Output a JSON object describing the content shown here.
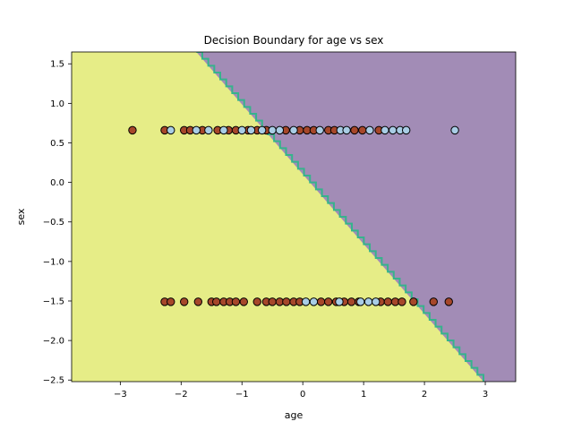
{
  "chart_data": {
    "type": "scatter",
    "title": "Decision Boundary for age vs sex",
    "xlabel": "age",
    "ylabel": "sex",
    "xlim": [
      -3.8,
      3.5
    ],
    "ylim": [
      -2.52,
      1.65
    ],
    "xticks": [
      -3,
      -2,
      -1,
      0,
      1,
      2,
      3
    ],
    "yticks": [
      -2.5,
      -2.0,
      -1.5,
      -1.0,
      -0.5,
      0.0,
      0.5,
      1.0,
      1.5
    ],
    "grid": false,
    "boundary": {
      "points": [
        [
          -1.75,
          1.65
        ],
        [
          2.97,
          -2.52
        ]
      ],
      "left_region_color": "#e6ed87",
      "right_region_color": "#a28cb6",
      "edge_color": "#36b38c"
    },
    "class_colors": {
      "class_0": "#a9cde5",
      "class_1": "#a6472a"
    },
    "series": [
      {
        "class": "class_1",
        "points": [
          [
            -2.8,
            0.66
          ],
          [
            -2.27,
            0.66
          ],
          [
            -1.95,
            0.66
          ],
          [
            -1.85,
            0.66
          ],
          [
            -1.65,
            0.66
          ],
          [
            -1.4,
            0.66
          ],
          [
            -1.22,
            0.66
          ],
          [
            -1.1,
            0.66
          ],
          [
            -0.9,
            0.66
          ],
          [
            -0.75,
            0.66
          ],
          [
            -0.6,
            0.66
          ],
          [
            -0.28,
            0.66
          ],
          [
            -0.05,
            0.66
          ],
          [
            0.07,
            0.66
          ],
          [
            0.18,
            0.66
          ],
          [
            0.42,
            0.66
          ],
          [
            0.52,
            0.66
          ],
          [
            0.85,
            0.66
          ],
          [
            0.98,
            0.66
          ],
          [
            1.25,
            0.66
          ],
          [
            -2.27,
            -1.51
          ],
          [
            -2.17,
            -1.51
          ],
          [
            -1.95,
            -1.51
          ],
          [
            -1.72,
            -1.51
          ],
          [
            -1.5,
            -1.51
          ],
          [
            -1.42,
            -1.51
          ],
          [
            -1.3,
            -1.51
          ],
          [
            -1.2,
            -1.51
          ],
          [
            -1.1,
            -1.51
          ],
          [
            -0.97,
            -1.51
          ],
          [
            -0.75,
            -1.51
          ],
          [
            -0.6,
            -1.51
          ],
          [
            -0.5,
            -1.51
          ],
          [
            -0.38,
            -1.51
          ],
          [
            -0.27,
            -1.51
          ],
          [
            -0.15,
            -1.51
          ],
          [
            -0.05,
            -1.51
          ],
          [
            0.3,
            -1.51
          ],
          [
            0.42,
            -1.51
          ],
          [
            0.55,
            -1.51
          ],
          [
            0.68,
            -1.51
          ],
          [
            0.8,
            -1.51
          ],
          [
            0.92,
            -1.51
          ],
          [
            1.28,
            -1.51
          ],
          [
            1.4,
            -1.51
          ],
          [
            1.52,
            -1.51
          ],
          [
            1.63,
            -1.51
          ],
          [
            1.82,
            -1.51
          ],
          [
            2.15,
            -1.51
          ],
          [
            2.4,
            -1.51
          ]
        ]
      },
      {
        "class": "class_0",
        "points": [
          [
            -2.17,
            0.66
          ],
          [
            -1.75,
            0.66
          ],
          [
            -1.55,
            0.66
          ],
          [
            -1.3,
            0.66
          ],
          [
            -1.0,
            0.66
          ],
          [
            -0.85,
            0.66
          ],
          [
            -0.67,
            0.66
          ],
          [
            -0.5,
            0.66
          ],
          [
            -0.38,
            0.66
          ],
          [
            -0.15,
            0.66
          ],
          [
            0.28,
            0.66
          ],
          [
            0.62,
            0.66
          ],
          [
            0.72,
            0.66
          ],
          [
            1.1,
            0.66
          ],
          [
            1.35,
            0.66
          ],
          [
            1.48,
            0.66
          ],
          [
            1.6,
            0.66
          ],
          [
            1.7,
            0.66
          ],
          [
            2.5,
            0.66
          ],
          [
            0.05,
            -1.51
          ],
          [
            0.18,
            -1.51
          ],
          [
            0.6,
            -1.51
          ],
          [
            0.95,
            -1.51
          ],
          [
            1.08,
            -1.51
          ],
          [
            1.2,
            -1.51
          ]
        ]
      }
    ]
  }
}
